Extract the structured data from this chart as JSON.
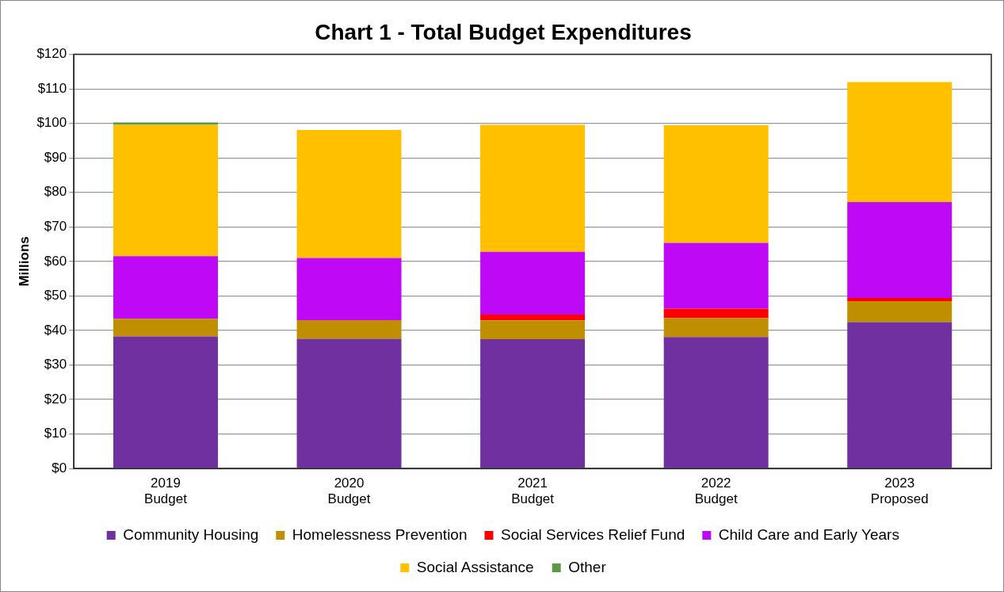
{
  "chart_data": {
    "type": "bar",
    "title": "Chart 1 - Total Budget Expenditures",
    "ylabel": "Millions",
    "categories": [
      "2019\nBudget",
      "2020\nBudget",
      "2021\nBudget",
      "2022\nBudget",
      "2023\nProposed"
    ],
    "stacked": true,
    "series": [
      {
        "name": "Community Housing",
        "color": "#7030a0",
        "values": [
          38.3,
          37.6,
          37.5,
          38.1,
          42.4
        ]
      },
      {
        "name": "Homelessness Prevention",
        "color": "#bf8f00",
        "values": [
          5.1,
          5.4,
          5.4,
          5.5,
          6.1
        ]
      },
      {
        "name": "Social Services Relief Fund",
        "color": "#ff0000",
        "values": [
          0,
          0,
          1.7,
          2.7,
          0.9
        ]
      },
      {
        "name": "Child Care and Early Years",
        "color": "#bf09f6",
        "values": [
          18.1,
          18.0,
          18.2,
          19.1,
          27.8
        ]
      },
      {
        "name": "Social Assistance",
        "color": "#ffc000",
        "values": [
          38.1,
          37.1,
          36.8,
          34.1,
          34.8
        ]
      },
      {
        "name": "Other",
        "color": "#5b9a45",
        "values": [
          0.7,
          0,
          0,
          0,
          0
        ]
      }
    ],
    "ylim": [
      0,
      120
    ],
    "yticks": [
      {
        "value": 0,
        "label": "$0"
      },
      {
        "value": 10,
        "label": "$10"
      },
      {
        "value": 20,
        "label": "$20"
      },
      {
        "value": 30,
        "label": "$30"
      },
      {
        "value": 40,
        "label": "$40"
      },
      {
        "value": 50,
        "label": "$50"
      },
      {
        "value": 60,
        "label": "$60"
      },
      {
        "value": 70,
        "label": "$70"
      },
      {
        "value": 80,
        "label": "$80"
      },
      {
        "value": 90,
        "label": "$90"
      },
      {
        "value": 100,
        "label": "$100"
      },
      {
        "value": 110,
        "label": "$110"
      },
      {
        "value": 120,
        "label": "$120"
      }
    ],
    "grid": "y",
    "legend": "bottom"
  }
}
